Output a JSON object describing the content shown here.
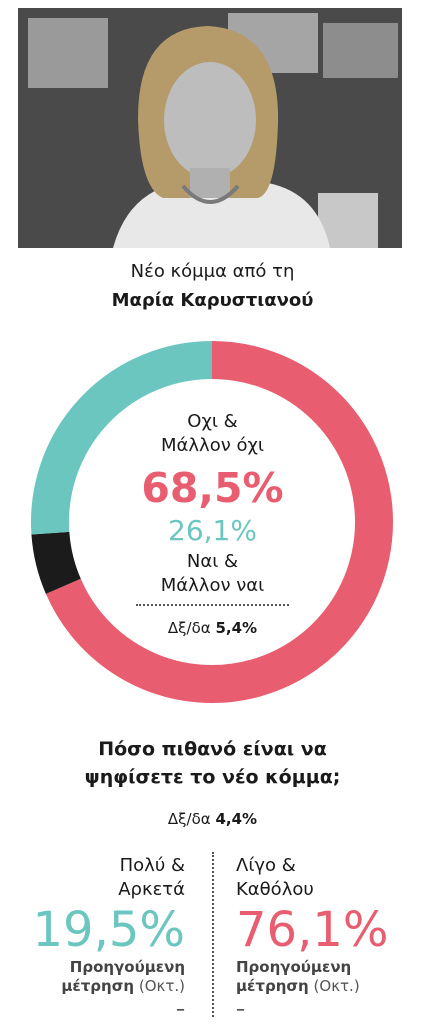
{
  "headline": {
    "line1": "Νέο κόμμα από τη",
    "line2": "Μαρία Καρυστιανού"
  },
  "chart_data": [
    {
      "type": "pie",
      "style": "donut",
      "slices": [
        {
          "label_lines": [
            "Οχι &",
            "Μάλλον όχι"
          ],
          "value": 68.5,
          "display": "68,5%",
          "color": "#e85d6f"
        },
        {
          "label_lines": [
            "Ναι &",
            "Μάλλον ναι"
          ],
          "value": 26.1,
          "display": "26,1%",
          "color": "#6cc6c0"
        },
        {
          "label": "Δξ/δα",
          "value": 5.4,
          "display": "5,4%",
          "color": "#1b1b1b"
        }
      ]
    },
    {
      "type": "table",
      "question_lines": [
        "Πόσο πιθανό είναι να",
        "ψηφίσετε το νέο κόμμα;"
      ],
      "dkna": {
        "label": "Δξ/δα",
        "value": 4.4,
        "display": "4,4%"
      },
      "columns": [
        {
          "label_lines": [
            "Πολύ &",
            "Αρκετά"
          ],
          "value": 19.5,
          "display": "19,5%",
          "color": "#6cc6c0",
          "previous_label": "Προηγούμενη",
          "previous_label2": "μέτρηση",
          "previous_period": "(Οκτ.)",
          "previous_value": "–"
        },
        {
          "label_lines": [
            "Λίγο &",
            "Καθόλου"
          ],
          "value": 76.1,
          "display": "76,1%",
          "color": "#e85d6f",
          "previous_label": "Προηγούμενη",
          "previous_label2": "μέτρηση",
          "previous_period": "(Οκτ.)",
          "previous_value": "–"
        }
      ]
    }
  ]
}
